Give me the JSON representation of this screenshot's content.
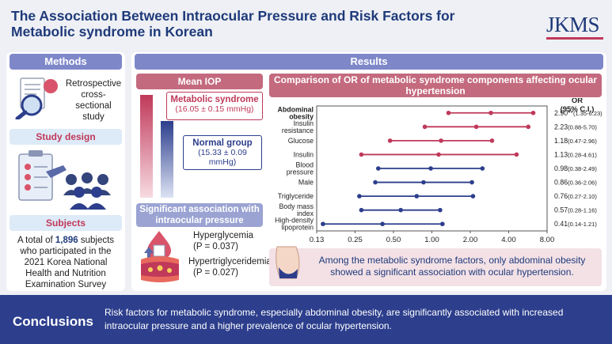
{
  "header": {
    "title": "The Association Between Intraocular Pressure and Risk Factors for Metabolic syndrome in Korean",
    "journal": "JKMS"
  },
  "methods": {
    "heading": "Methods",
    "study_type": "Retrospective cross-sectional study",
    "study_design_heading": "Study design",
    "subjects_heading": "Subjects",
    "subjects_pre": "A total of ",
    "subjects_count": "1,896",
    "subjects_post": " subjects who participated in the 2021 Korea National Health and Nutrition Examination Survey"
  },
  "results": {
    "heading": "Results",
    "mean_iop": {
      "heading": "Mean IOP",
      "metabolic_label": "Metabolic syndrome",
      "metabolic_value": "(16.05 ± 0.15 mmHg)",
      "normal_label": "Normal group",
      "normal_value": "(15.33 ± 0.09 mmHg)",
      "metabolic_level": 16.05,
      "normal_level": 15.33
    },
    "significant": {
      "heading": "Significant association with intraocular pressure",
      "items": [
        {
          "name": "Hyperglycemia",
          "p": "(P = 0.037)"
        },
        {
          "name": "Hypertriglyceridemia",
          "p": "(P = 0.027)"
        }
      ]
    },
    "comparison_heading": "Comparison of OR of metabolic syndrome components affecting ocular hypertension",
    "note": "Among the metabolic syndrome factors, only abdominal obesity showed a significant association with ocular hypertension."
  },
  "chart_data": {
    "type": "forest",
    "title": "Comparison of OR of metabolic syndrome components affecting ocular hypertension",
    "column_header": "OR (95% C.I.)",
    "x_scale": "log2",
    "xlim": [
      0.13,
      8.0
    ],
    "x_ticks": [
      "0.13",
      "0.25",
      "0.50",
      "1.00",
      "2.00",
      "4.00",
      "8.00"
    ],
    "x_tick_values": [
      0.125,
      0.25,
      0.5,
      1.0,
      2.0,
      4.0,
      8.0
    ],
    "rows": [
      {
        "label": "Abdominal obesity",
        "or": 2.9,
        "lo": 1.35,
        "hi": 6.23,
        "text": "2.90**(1.35-6.23)",
        "bold": true,
        "color": "#c0395a"
      },
      {
        "label": "Insulin resistance",
        "or": 2.23,
        "lo": 0.88,
        "hi": 5.7,
        "text": "2.23 (0.88-5.70)",
        "bold": false,
        "color": "#c0395a"
      },
      {
        "label": "Glucose",
        "or": 1.18,
        "lo": 0.47,
        "hi": 2.96,
        "text": "1.18 (0.47-2.96)",
        "bold": false,
        "color": "#c0395a"
      },
      {
        "label": "Insulin",
        "or": 1.13,
        "lo": 0.28,
        "hi": 4.61,
        "text": "1.13 (0.28-4.61)",
        "bold": false,
        "color": "#c0395a"
      },
      {
        "label": "Blood pressure",
        "or": 0.98,
        "lo": 0.38,
        "hi": 2.49,
        "text": "0.98 (0.38-2.49)",
        "bold": false,
        "color": "#2c3e8c"
      },
      {
        "label": "Male",
        "or": 0.86,
        "lo": 0.36,
        "hi": 2.06,
        "text": "0.86 (0.36-2.06)",
        "bold": false,
        "color": "#2c3e8c"
      },
      {
        "label": "Triglyceride",
        "or": 0.76,
        "lo": 0.27,
        "hi": 2.1,
        "text": "0.76 (0.27-2.10)",
        "bold": false,
        "color": "#2c3e8c"
      },
      {
        "label": "Body mass index",
        "or": 0.57,
        "lo": 0.28,
        "hi": 1.16,
        "text": "0.57 (0.28-1.16)",
        "bold": false,
        "color": "#2c3e8c"
      },
      {
        "label": "High-density lipoprotein",
        "or": 0.41,
        "lo": 0.14,
        "hi": 1.21,
        "text": "0.41 (0.14-1.21)",
        "bold": false,
        "color": "#2c3e8c"
      }
    ]
  },
  "conclusions": {
    "label": "Conclusions",
    "text": "Risk factors for metabolic syndrome, especially abdominal obesity, are significantly associated with increased intraocular pressure and a higher prevalence of ocular hypertension."
  }
}
